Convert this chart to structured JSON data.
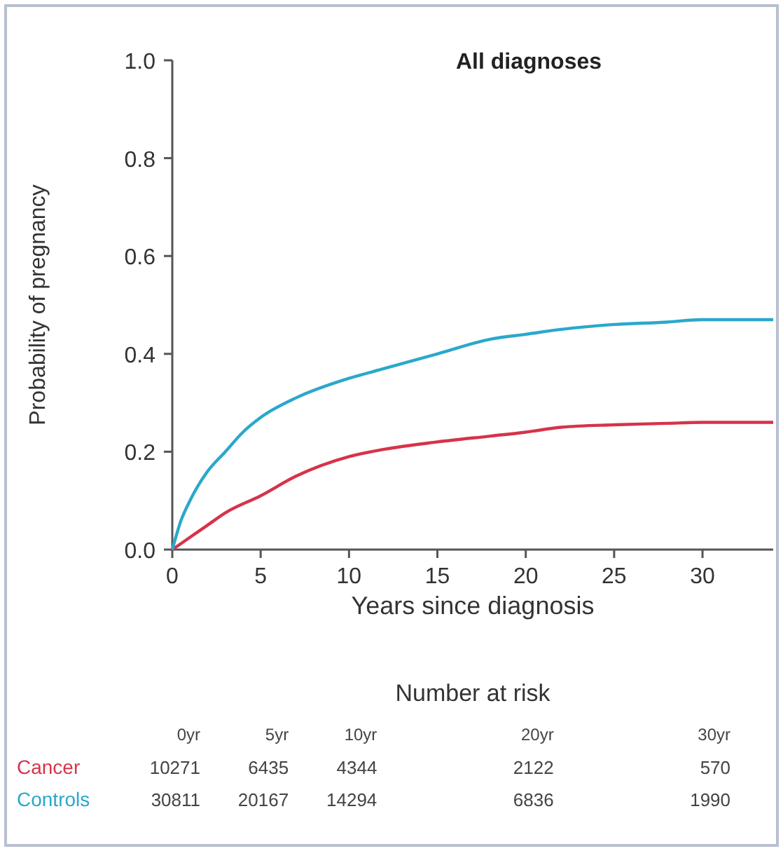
{
  "chart_data": {
    "type": "line",
    "title": "All diagnoses",
    "xlabel": "Years since diagnosis",
    "ylabel": "Probability of pregnancy",
    "xlim": [
      0,
      34
    ],
    "xticks": [
      0,
      5,
      10,
      15,
      20,
      25,
      30
    ],
    "ylim": [
      0,
      1
    ],
    "yticks": [
      {
        "value": 0,
        "label": "0.0"
      },
      {
        "value": 0.2,
        "label": "0.2"
      },
      {
        "value": 0.4,
        "label": "0.4"
      },
      {
        "value": 0.6,
        "label": "0.6"
      },
      {
        "value": 0.8,
        "label": "0.8"
      },
      {
        "value": 1,
        "label": "1.0"
      }
    ],
    "grid": false,
    "legend": false,
    "marker": "none",
    "line_style": "solid",
    "series": [
      {
        "name": "Cancer",
        "color": "#d6334a",
        "x": [
          0,
          1,
          2,
          3,
          5,
          7,
          10,
          12,
          15,
          18,
          20,
          22,
          25,
          28,
          30,
          34
        ],
        "values": [
          0,
          0.025,
          0.05,
          0.075,
          0.11,
          0.15,
          0.19,
          0.205,
          0.22,
          0.232,
          0.24,
          0.25,
          0.255,
          0.258,
          0.26,
          0.26
        ]
      },
      {
        "name": "Controls",
        "color": "#2aa8cc",
        "x": [
          0,
          0.5,
          1,
          2,
          3,
          4,
          5,
          7,
          10,
          12,
          15,
          18,
          20,
          22,
          25,
          28,
          30,
          34
        ],
        "values": [
          0,
          0.06,
          0.1,
          0.16,
          0.2,
          0.24,
          0.27,
          0.31,
          0.35,
          0.37,
          0.4,
          0.43,
          0.44,
          0.45,
          0.46,
          0.465,
          0.47,
          0.47
        ]
      }
    ],
    "annotations": [
      "Number at risk",
      "0yr 5yr 10yr 20yr 30yr",
      "10271 6435 4344 2122 570",
      "30811 20167 14294 6836 1990"
    ]
  }
}
